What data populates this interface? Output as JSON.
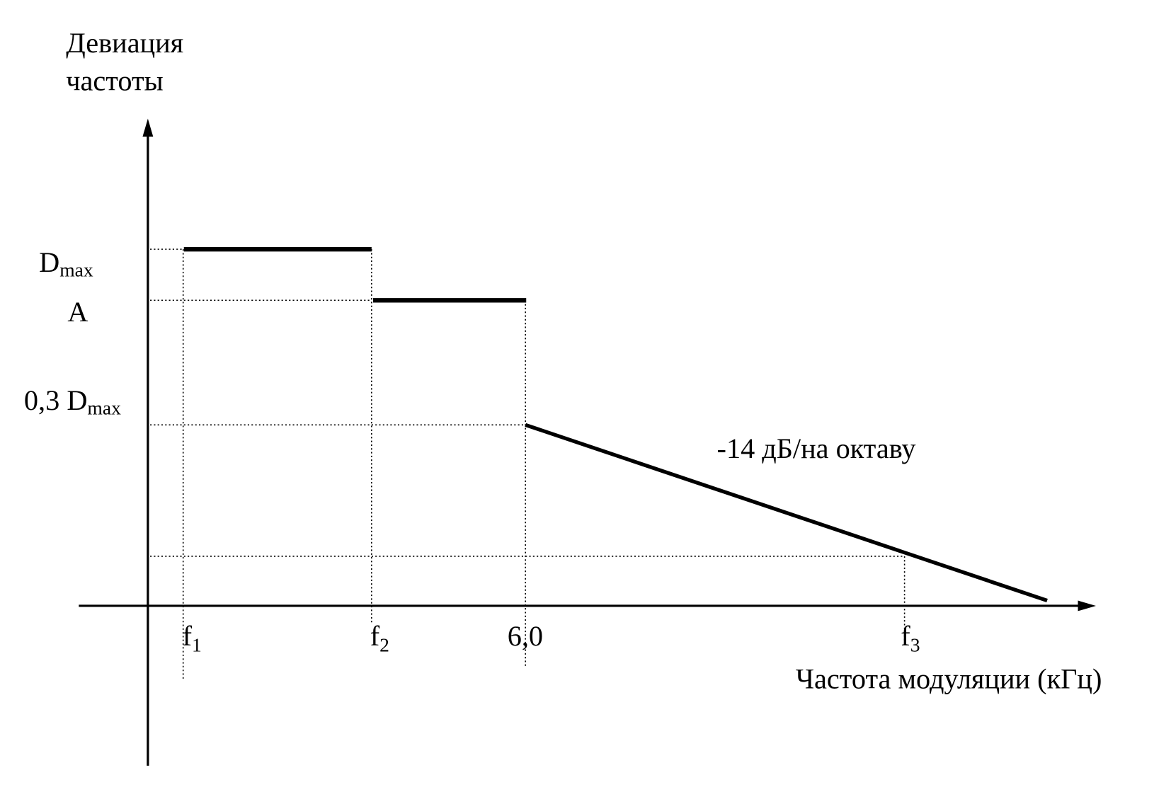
{
  "y_axis": {
    "label": [
      "Девиация",
      "частоты"
    ],
    "levels": [
      {
        "base": "D",
        "sub": "max"
      },
      {
        "base": "A"
      },
      {
        "base": "0,3 D",
        "sub": "max"
      }
    ]
  },
  "x_axis": {
    "label": "Частота модуляции (кГц)",
    "marks": [
      {
        "base": "f",
        "sub": "1"
      },
      {
        "base": "f",
        "sub": "2"
      },
      {
        "base": "6,0"
      },
      {
        "base": "f",
        "sub": "3"
      }
    ]
  },
  "annotation": "-14 дБ/на октаву"
}
